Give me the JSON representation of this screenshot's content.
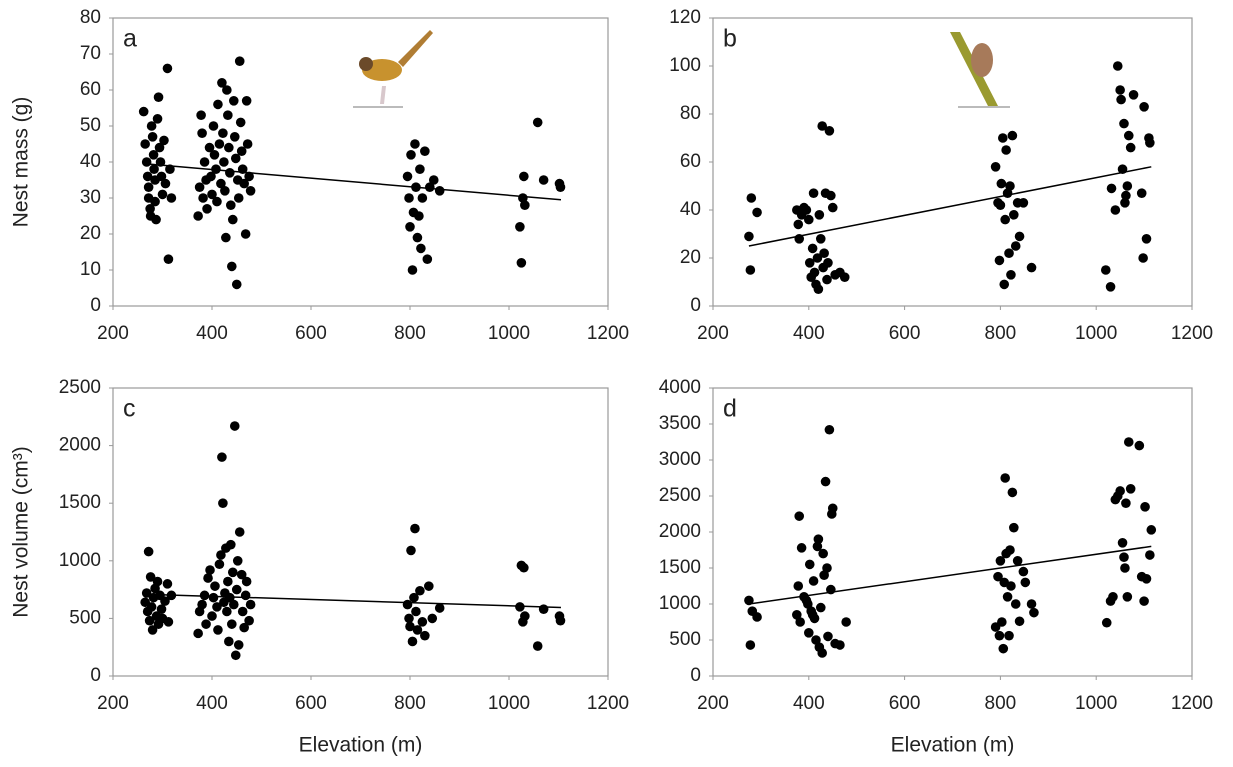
{
  "chart_data": [
    {
      "type": "scatter",
      "panel": "a",
      "ylabel": "Nest mass (g)",
      "color": "#000000",
      "xlim": [
        200,
        1200
      ],
      "xticks": [
        200,
        400,
        600,
        800,
        1000,
        1200
      ],
      "ylim": [
        0,
        80
      ],
      "yticks": [
        0,
        10,
        20,
        30,
        40,
        50,
        60,
        70,
        80
      ],
      "x": [
        262,
        265,
        268,
        270,
        272,
        272,
        275,
        276,
        278,
        280,
        282,
        283,
        285,
        285,
        287,
        290,
        292,
        294,
        296,
        298,
        300,
        303,
        306,
        310,
        312,
        315,
        318,
        372,
        375,
        378,
        380,
        382,
        385,
        388,
        390,
        395,
        398,
        400,
        403,
        405,
        408,
        410,
        412,
        415,
        418,
        420,
        422,
        424,
        426,
        428,
        430,
        432,
        434,
        436,
        438,
        440,
        442,
        444,
        446,
        448,
        450,
        452,
        454,
        456,
        458,
        460,
        462,
        465,
        468,
        470,
        472,
        475,
        478,
        795,
        798,
        800,
        802,
        805,
        807,
        810,
        812,
        815,
        818,
        820,
        822,
        825,
        830,
        835,
        840,
        848,
        860,
        1022,
        1025,
        1028,
        1030,
        1032,
        1058,
        1070,
        1102,
        1104
      ],
      "values": [
        54,
        45,
        40,
        36,
        33,
        30,
        27,
        25,
        50,
        47,
        42,
        38,
        35,
        29,
        24,
        52,
        58,
        44,
        40,
        36,
        31,
        46,
        34,
        66,
        13,
        38,
        30,
        25,
        33,
        53,
        48,
        30,
        40,
        35,
        27,
        44,
        36,
        31,
        50,
        42,
        38,
        29,
        56,
        45,
        34,
        62,
        48,
        40,
        32,
        19,
        60,
        53,
        44,
        37,
        28,
        11,
        24,
        57,
        47,
        41,
        6,
        35,
        30,
        68,
        51,
        43,
        38,
        34,
        20,
        57,
        45,
        36,
        32,
        36,
        30,
        22,
        42,
        10,
        26,
        45,
        33,
        19,
        25,
        38,
        16,
        30,
        43,
        13,
        33,
        35,
        32,
        22,
        12,
        30,
        36,
        28,
        51,
        35,
        34,
        33
      ],
      "trend": {
        "x": [
          265,
          1105
        ],
        "values": [
          39.5,
          29.5
        ]
      }
    },
    {
      "type": "scatter",
      "panel": "b",
      "color": "#000000",
      "xlim": [
        200,
        1200
      ],
      "xticks": [
        200,
        400,
        600,
        800,
        1000,
        1200
      ],
      "ylim": [
        0,
        120
      ],
      "yticks": [
        0,
        20,
        40,
        60,
        80,
        100,
        120
      ],
      "x": [
        275,
        278,
        280,
        292,
        375,
        378,
        380,
        385,
        390,
        395,
        400,
        402,
        405,
        408,
        410,
        412,
        415,
        418,
        420,
        422,
        425,
        428,
        430,
        432,
        435,
        438,
        440,
        443,
        446,
        450,
        455,
        465,
        475,
        790,
        795,
        798,
        800,
        802,
        805,
        808,
        810,
        812,
        815,
        818,
        820,
        822,
        825,
        828,
        832,
        836,
        840,
        848,
        865,
        1020,
        1030,
        1032,
        1040,
        1045,
        1050,
        1052,
        1055,
        1058,
        1060,
        1062,
        1065,
        1068,
        1072,
        1078,
        1095,
        1098,
        1100,
        1105,
        1110,
        1112
      ],
      "values": [
        29,
        15,
        45,
        39,
        40,
        34,
        28,
        38,
        41,
        40,
        36,
        18,
        12,
        24,
        47,
        14,
        9,
        20,
        7,
        38,
        28,
        75,
        16,
        22,
        47,
        11,
        18,
        73,
        46,
        41,
        13,
        14,
        12,
        58,
        43,
        19,
        42,
        51,
        70,
        9,
        36,
        65,
        47,
        22,
        50,
        13,
        71,
        38,
        25,
        43,
        29,
        43,
        16,
        15,
        8,
        49,
        40,
        100,
        90,
        86,
        57,
        76,
        43,
        46,
        50,
        71,
        66,
        88,
        47,
        20,
        83,
        28,
        70,
        68
      ],
      "trend": {
        "x": [
          275,
          1115
        ],
        "values": [
          25,
          58
        ]
      }
    },
    {
      "type": "scatter",
      "panel": "c",
      "ylabel": "Nest volume (cm³)",
      "xlabel": "Elevation (m)",
      "color": "#000000",
      "xlim": [
        200,
        1200
      ],
      "xticks": [
        200,
        400,
        600,
        800,
        1000,
        1200
      ],
      "ylim": [
        0,
        2500
      ],
      "yticks": [
        0,
        500,
        1000,
        1500,
        2000,
        2500
      ],
      "x": [
        265,
        268,
        270,
        272,
        274,
        276,
        278,
        280,
        282,
        285,
        288,
        290,
        292,
        295,
        298,
        300,
        305,
        310,
        312,
        318,
        372,
        375,
        380,
        385,
        388,
        392,
        396,
        400,
        403,
        406,
        410,
        412,
        415,
        418,
        420,
        422,
        424,
        426,
        428,
        430,
        432,
        434,
        436,
        438,
        440,
        442,
        444,
        446,
        448,
        450,
        452,
        454,
        456,
        460,
        462,
        465,
        468,
        470,
        475,
        478,
        795,
        798,
        800,
        802,
        805,
        808,
        810,
        812,
        815,
        820,
        825,
        830,
        838,
        845,
        860,
        1022,
        1025,
        1028,
        1030,
        1032,
        1058,
        1070,
        1102,
        1104
      ],
      "values": [
        640,
        720,
        560,
        1080,
        480,
        860,
        600,
        400,
        680,
        760,
        520,
        820,
        450,
        700,
        580,
        500,
        650,
        800,
        470,
        700,
        370,
        560,
        620,
        700,
        450,
        850,
        920,
        520,
        680,
        780,
        600,
        400,
        970,
        1050,
        1900,
        1500,
        640,
        720,
        1110,
        560,
        820,
        300,
        680,
        1140,
        450,
        900,
        620,
        2170,
        180,
        750,
        1000,
        270,
        1250,
        880,
        560,
        420,
        700,
        820,
        480,
        620,
        620,
        500,
        430,
        1090,
        300,
        680,
        1280,
        560,
        400,
        740,
        470,
        350,
        780,
        500,
        590,
        600,
        960,
        470,
        940,
        520,
        260,
        580,
        520,
        480
      ],
      "trend": {
        "x": [
          265,
          1105
        ],
        "values": [
          710,
          595
        ]
      }
    },
    {
      "type": "scatter",
      "panel": "d",
      "xlabel": "Elevation (m)",
      "color": "#000000",
      "xlim": [
        200,
        1200
      ],
      "xticks": [
        200,
        400,
        600,
        800,
        1000,
        1200
      ],
      "ylim": [
        0,
        4000
      ],
      "yticks": [
        0,
        500,
        1000,
        1500,
        2000,
        2500,
        3000,
        3500,
        4000
      ],
      "x": [
        275,
        278,
        282,
        292,
        375,
        378,
        380,
        382,
        385,
        390,
        395,
        398,
        400,
        402,
        405,
        408,
        410,
        412,
        415,
        418,
        420,
        422,
        425,
        428,
        430,
        432,
        435,
        438,
        440,
        443,
        446,
        448,
        450,
        455,
        465,
        478,
        790,
        795,
        798,
        800,
        803,
        806,
        808,
        810,
        812,
        815,
        818,
        820,
        822,
        825,
        828,
        832,
        836,
        840,
        848,
        852,
        865,
        870,
        1022,
        1030,
        1035,
        1040,
        1045,
        1050,
        1055,
        1058,
        1060,
        1062,
        1065,
        1068,
        1072,
        1090,
        1095,
        1100,
        1102,
        1105,
        1112,
        1115
      ],
      "values": [
        1050,
        430,
        900,
        820,
        850,
        1250,
        2220,
        750,
        1780,
        1100,
        1050,
        1000,
        600,
        1550,
        900,
        850,
        1320,
        800,
        500,
        1800,
        1900,
        400,
        950,
        320,
        1700,
        1400,
        2700,
        1500,
        550,
        3420,
        1200,
        2250,
        2330,
        450,
        430,
        750,
        680,
        1380,
        560,
        1600,
        750,
        380,
        1300,
        2750,
        1700,
        1100,
        560,
        1750,
        1250,
        2550,
        2060,
        1000,
        1600,
        760,
        1450,
        1300,
        1000,
        880,
        740,
        1040,
        1100,
        2450,
        2500,
        2570,
        1850,
        1650,
        1500,
        2400,
        1100,
        3250,
        2600,
        3200,
        1380,
        1040,
        2350,
        1350,
        1680,
        2030
      ],
      "trend": {
        "x": [
          275,
          1115
        ],
        "values": [
          1000,
          1800
        ]
      }
    }
  ]
}
